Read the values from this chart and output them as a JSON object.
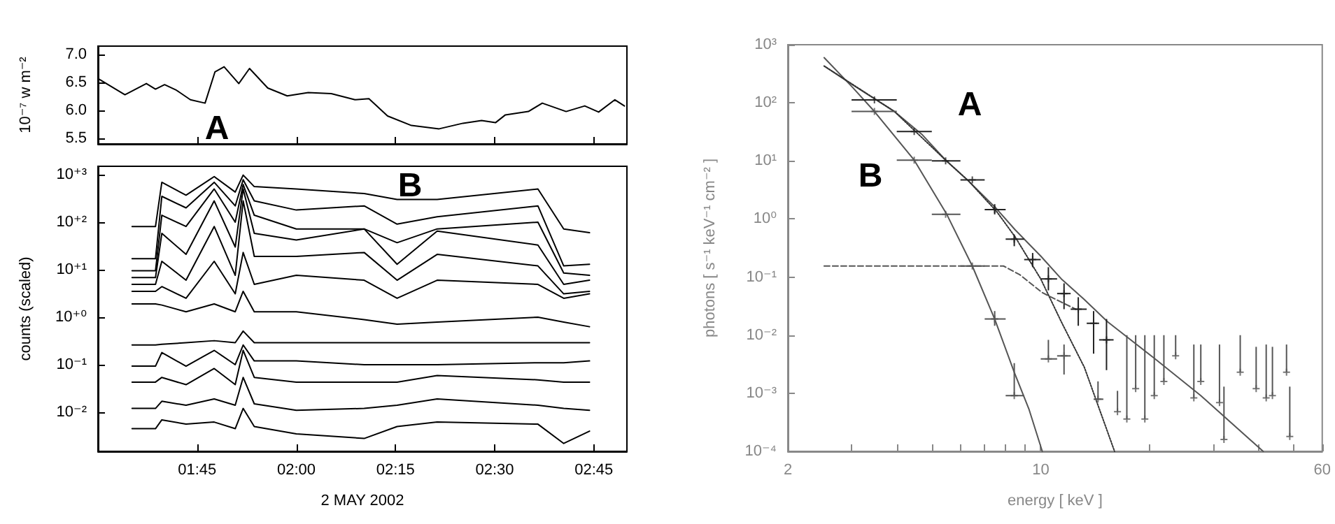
{
  "chart_data": [
    {
      "type": "line",
      "ylabel": "10⁻⁷ w m⁻²",
      "annotations": [
        "A"
      ],
      "color": "#000000",
      "marker": "none",
      "line_style": "solid",
      "tick_labels": "y",
      "x": [
        1.5,
        1.568,
        1.622,
        1.645,
        1.668,
        1.698,
        1.733,
        1.77,
        1.795,
        1.818,
        1.855,
        1.882,
        1.928,
        1.977,
        2.03,
        2.088,
        2.148,
        2.183,
        2.23,
        2.29,
        2.36,
        2.42,
        2.467,
        2.502,
        2.527,
        2.585,
        2.62,
        2.68,
        2.727,
        2.762,
        2.803,
        2.827
      ],
      "values": [
        6.57,
        6.28,
        6.48,
        6.38,
        6.46,
        6.36,
        6.19,
        6.13,
        6.69,
        6.78,
        6.48,
        6.75,
        6.4,
        6.26,
        6.32,
        6.3,
        6.19,
        6.21,
        5.9,
        5.73,
        5.67,
        5.77,
        5.82,
        5.78,
        5.92,
        5.98,
        6.13,
        5.98,
        6.08,
        5.97,
        6.19,
        6.08
      ],
      "xlim": [
        1.5,
        2.8333
      ],
      "xticks": [
        {
          "value": 1.75,
          "label": null
        },
        {
          "value": 2,
          "label": null
        },
        {
          "value": 2.25,
          "label": null
        },
        {
          "value": 2.5,
          "label": null
        },
        {
          "value": 2.75,
          "label": null
        }
      ],
      "ylim": [
        5.4,
        7.15
      ],
      "yticks": [
        {
          "value": 5.5,
          "label": "5.5"
        },
        {
          "value": 6,
          "label": "6.0"
        },
        {
          "value": 6.5,
          "label": "6.5"
        },
        {
          "value": 7,
          "label": "7.0"
        }
      ]
    },
    {
      "type": "line",
      "xlabel": "2 MAY 2002",
      "ylabel": "counts (scaled)",
      "annotations": [
        "B"
      ],
      "marker": "none",
      "line_style": "solid",
      "log": "y",
      "x": [
        1.586,
        1.645,
        1.661,
        1.722,
        1.793,
        1.846,
        1.866,
        1.894,
        2.0,
        2.171,
        2.254,
        2.355,
        2.609,
        2.674,
        2.739
      ],
      "series": [
        {
          "color": "#000000",
          "values": [
            81,
            81,
            690,
            370,
            910,
            430,
            980,
            560,
            500,
            400,
            300,
            300,
            500,
            72,
            60
          ]
        },
        {
          "color": "#000000",
          "values": [
            17,
            17,
            350,
            200,
            690,
            220,
            780,
            280,
            180,
            220,
            91,
            130,
            220,
            12,
            13
          ]
        },
        {
          "color": "#000000",
          "values": [
            9.5,
            9.5,
            140,
            81,
            500,
            100,
            620,
            140,
            72,
            72,
            37,
            72,
            100,
            8.5,
            7.6
          ]
        },
        {
          "color": "#000000",
          "values": [
            6.8,
            6.8,
            58,
            21,
            280,
            30,
            500,
            58,
            42,
            72,
            13,
            65,
            33,
            4.9,
            6.0
          ]
        },
        {
          "color": "#000000",
          "values": [
            4.9,
            4.9,
            15,
            6.0,
            81,
            7.6,
            280,
            19,
            19,
            23,
            6.0,
            21,
            12,
            3.1,
            3.5
          ]
        },
        {
          "color": "#000000",
          "values": [
            3.5,
            3.5,
            4.4,
            2.5,
            15,
            3.1,
            23,
            4.9,
            7.6,
            6.0,
            2.5,
            6.0,
            4.9,
            2.5,
            3.1
          ]
        },
        {
          "color": "#000000",
          "values": [
            1.9,
            1.9,
            1.8,
            1.3,
            1.9,
            1.3,
            3.5,
            1.3,
            1.3,
            0.89,
            0.71,
            0.79,
            1.0,
            0.79,
            0.63
          ]
        },
        {
          "color": "#000000",
          "values": [
            0.26,
            0.26,
            0.27,
            0.29,
            0.32,
            0.29,
            0.51,
            0.29,
            0.29,
            0.29,
            0.29,
            0.29,
            0.29,
            0.29,
            0.29
          ]
        },
        {
          "color": "#000000",
          "values": [
            0.093,
            0.093,
            0.18,
            0.093,
            0.2,
            0.1,
            0.26,
            0.12,
            0.12,
            0.1,
            0.1,
            0.1,
            0.11,
            0.11,
            0.12
          ]
        },
        {
          "color": "#000000",
          "values": [
            0.043,
            0.043,
            0.054,
            0.038,
            0.083,
            0.038,
            0.2,
            0.054,
            0.043,
            0.043,
            0.043,
            0.059,
            0.048,
            0.043,
            0.043
          ]
        },
        {
          "color": "#000000",
          "values": [
            0.012,
            0.012,
            0.017,
            0.014,
            0.019,
            0.014,
            0.054,
            0.015,
            0.011,
            0.012,
            0.014,
            0.019,
            0.014,
            0.012,
            0.011
          ]
        },
        {
          "color": "#000000",
          "values": [
            0.0045,
            0.0045,
            0.0069,
            0.0056,
            0.0062,
            0.0045,
            0.012,
            0.005,
            0.0035,
            0.0028,
            0.005,
            0.0062,
            0.0056,
            0.0022,
            0.004
          ]
        }
      ],
      "xlim": [
        1.5,
        2.8333
      ],
      "xticks": [
        {
          "value": 1.75,
          "label": "01:45"
        },
        {
          "value": 2,
          "label": "02:00"
        },
        {
          "value": 2.25,
          "label": "02:15"
        },
        {
          "value": 2.5,
          "label": "02:30"
        },
        {
          "value": 2.75,
          "label": "02:45"
        }
      ],
      "ylim": [
        0.0015,
        1500
      ],
      "yticks": [
        {
          "value": 0.01,
          "label": "10⁻²"
        },
        {
          "value": 0.1,
          "label": "10⁻¹"
        },
        {
          "value": 1,
          "label": "10⁺⁰"
        },
        {
          "value": 10,
          "label": "10⁺¹"
        },
        {
          "value": 100,
          "label": "10⁺²"
        },
        {
          "value": 1000,
          "label": "10⁺³"
        }
      ]
    },
    {
      "type": "line",
      "xlabel": "energy [ keV ]",
      "ylabel": "photons [ s⁻¹ keV⁻¹ cm⁻² ]",
      "annotations": [
        "A",
        "B"
      ],
      "marker": "none",
      "line_style": "solid",
      "log": "xy",
      "series": [
        {
          "color": "#555555",
          "x": [
            2.52,
            2.98,
            3.94,
            4.71,
            5.46,
            6.32,
            7.55,
            8.5,
            10,
            11.4,
            13.2,
            15.3,
            20.6,
            27.7,
            41.2
          ],
          "values": [
            430,
            215,
            71,
            28,
            10.3,
            4.5,
            1.5,
            0.65,
            0.23,
            0.093,
            0.041,
            0.017,
            0.004,
            0.00091,
            0.0001
          ]
        },
        {
          "color": "#555555",
          "x": [
            2.52,
            3.03,
            3.47,
            4.47,
            5.5,
            6.47,
            7.46,
            8.45,
            9.29,
            10.1
          ],
          "values": [
            600,
            180,
            71,
            10.3,
            1.2,
            0.155,
            0.019,
            0.0023,
            0.00052,
            0.0001
          ]
        },
        {
          "color": "#333333",
          "line_style": "dotted",
          "x": [
            2.52,
            3.94,
            5.46,
            6.32,
            7.55,
            8.5,
            10,
            11.4,
            13.2,
            16.0
          ],
          "values": [
            430,
            71,
            10.3,
            4.5,
            1.35,
            0.49,
            0.093,
            0.017,
            0.0028,
            0.0001
          ]
        },
        {
          "color": "#555555",
          "line_style": "dashed",
          "x": [
            2.52,
            7.89,
            8.75,
            10.1,
            11.4,
            12.5
          ],
          "values": [
            0.155,
            0.155,
            0.11,
            0.054,
            0.037,
            0.028
          ]
        },
        {
          "type": "scatter",
          "marker": "cross",
          "color": "#222222",
          "x": [
            3.47,
            4.47,
            5.46,
            6.47,
            7.46,
            8.45,
            9.5,
            10.5,
            11.6,
            12.7,
            14.0,
            15.2
          ],
          "values": [
            112,
            32,
            10,
            4.7,
            1.45,
            0.45,
            0.2,
            0.093,
            0.052,
            0.028,
            0.016,
            0.0083
          ],
          "xerrors": [
            [
              3,
              4
            ],
            [
              4,
              5
            ],
            [
              5,
              6
            ],
            [
              6,
              7
            ],
            [
              7,
              8
            ],
            [
              8,
              9
            ],
            [
              9,
              10
            ],
            [
              10,
              11.1
            ],
            [
              11.1,
              12.1
            ],
            [
              12.1,
              13.4
            ],
            [
              13.4,
              14.5
            ],
            [
              14.5,
              15.9
            ]
          ],
          "errors": [
            null,
            null,
            null,
            null,
            [
              1.2,
              1.8
            ],
            [
              0.34,
              0.54
            ],
            [
              0.148,
              0.26
            ],
            [
              0.059,
              0.148
            ],
            [
              0.028,
              0.078
            ],
            [
              0.0145,
              0.045
            ],
            [
              0.0048,
              0.026
            ],
            [
              0.0025,
              0.019
            ]
          ]
        },
        {
          "type": "scatter",
          "marker": "cross",
          "color": "#555555",
          "x": [
            3.47,
            4.47,
            5.46,
            6.47,
            7.46,
            8.45,
            10.5,
            11.6,
            14.4,
            16.3,
            17.3,
            18.3,
            19.4,
            20.6,
            21.9,
            23.6,
            26.5,
            27.7,
            31.2,
            32.1,
            35.6,
            39.4,
            42,
            43.7,
            47.8,
            48.8
          ],
          "values": [
            71,
            10.3,
            1.2,
            0.155,
            0.019,
            0.00091,
            0.0039,
            0.0044,
            0.00079,
            0.00048,
            0.00036,
            0.0012,
            0.00036,
            0.00091,
            0.0016,
            0.0044,
            0.00083,
            0.0016,
            0.00069,
            0.00016,
            0.0023,
            0.0012,
            0.00083,
            0.00091,
            0.0023,
            0.00018
          ],
          "xerrors": [
            [
              3,
              4
            ],
            [
              4,
              5
            ],
            [
              5,
              6
            ],
            [
              6,
              7
            ],
            [
              7,
              8
            ],
            [
              8,
              9
            ],
            [
              10,
              11.1
            ],
            [
              11.1,
              12.1
            ],
            [
              14,
              14.9
            ],
            null,
            null,
            null,
            null,
            null,
            null,
            null,
            null,
            null,
            null,
            null,
            null,
            null,
            null,
            null,
            null,
            null
          ],
          "errors": [
            null,
            null,
            null,
            null,
            [
              0.0145,
              0.026
            ],
            [
              0.00091,
              0.0033
            ],
            [
              0.0039,
              0.0083
            ],
            [
              0.0021,
              0.0069
            ],
            [
              0.00079,
              0.0016
            ],
            [
              0.00048,
              0.0011
            ],
            [
              0.00036,
              0.01
            ],
            [
              0.0012,
              0.01
            ],
            [
              0.00036,
              0.01
            ],
            [
              0.00091,
              0.01
            ],
            [
              0.0016,
              0.01
            ],
            [
              0.0044,
              0.01
            ],
            [
              0.00083,
              0.0069
            ],
            [
              0.0016,
              0.0069
            ],
            [
              0.00069,
              0.0069
            ],
            [
              0.00016,
              0.0013
            ],
            [
              0.0023,
              0.01
            ],
            [
              0.0012,
              0.0063
            ],
            [
              0.00083,
              0.0069
            ],
            [
              0.00091,
              0.0063
            ],
            [
              0.0023,
              0.0069
            ],
            [
              0.00018,
              0.0013
            ]
          ]
        }
      ],
      "xlim": [
        2,
        60
      ],
      "xticks": [
        2,
        {
          "value": 3,
          "label": null
        },
        {
          "value": 4,
          "label": null
        },
        {
          "value": 5,
          "label": null
        },
        {
          "value": 6,
          "label": null
        },
        {
          "value": 7,
          "label": null
        },
        {
          "value": 8,
          "label": null
        },
        {
          "value": 9,
          "label": null
        },
        10,
        {
          "value": 20,
          "label": null
        },
        {
          "value": 30,
          "label": null
        },
        {
          "value": 40,
          "label": null
        },
        {
          "value": 50,
          "label": null
        },
        60
      ],
      "ylim": [
        0.0001,
        1000
      ],
      "yticks": [
        {
          "value": 0.0001,
          "label": "10⁻⁴"
        },
        {
          "value": 0.001,
          "label": "10⁻³"
        },
        {
          "value": 0.01,
          "label": "10⁻²"
        },
        {
          "value": 0.1,
          "label": "10⁻¹"
        },
        {
          "value": 1,
          "label": "10⁰"
        },
        {
          "value": 10,
          "label": "10¹"
        },
        {
          "value": 100,
          "label": "10²"
        },
        {
          "value": 1000,
          "label": "10³"
        }
      ]
    }
  ]
}
